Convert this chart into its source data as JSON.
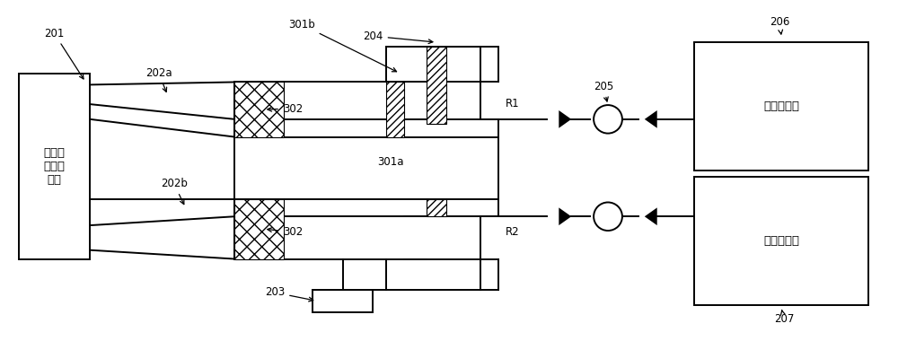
{
  "bg": "#ffffff",
  "lc": "#000000",
  "lw": 1.4,
  "fig_w": 10.0,
  "fig_h": 3.8,
  "text_201": "高压陌\n脉冲发\n生器",
  "text_osc1": "第一示波器",
  "text_osc2": "第二示波器",
  "fs_label": 8.5,
  "fs_chinese": 9.5
}
